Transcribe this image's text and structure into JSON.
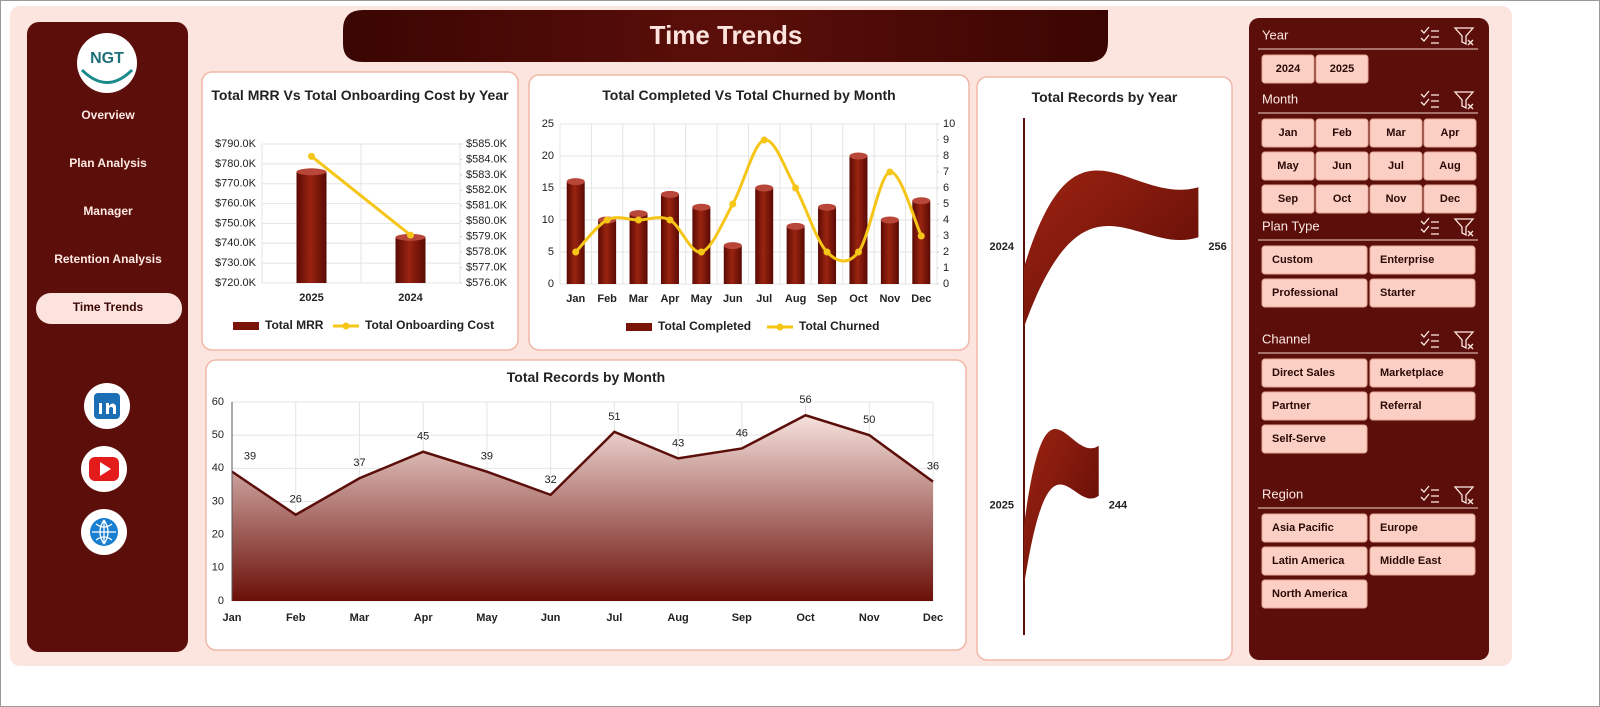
{
  "logo": "NGT",
  "navigation": [
    "Overview",
    "Plan Analysis",
    "Manager",
    "Retention Analysis",
    "Time Trends"
  ],
  "active_navigation": 4,
  "header": {
    "title": "Time Trends"
  },
  "chart_data": [
    {
      "type": "combo",
      "title": "Total MRR Vs Total Onboarding Cost by Year",
      "categories": [
        "2025",
        "2024"
      ],
      "series": [
        {
          "name": "Total MRR",
          "type": "bar",
          "color": "#7a1408",
          "values": [
            776000,
            743000
          ]
        },
        {
          "name": "Total Onboarding Cost",
          "type": "line",
          "axis": "y2",
          "color": "#f5c518",
          "values": [
            584200,
            579100
          ]
        }
      ],
      "ylim": [
        720000,
        790000
      ],
      "yticks": [
        {
          "value": 720000,
          "label": "$720.0K"
        },
        {
          "value": 730000,
          "label": "$730.0K"
        },
        {
          "value": 740000,
          "label": "$740.0K"
        },
        {
          "value": 750000,
          "label": "$750.0K"
        },
        {
          "value": 760000,
          "label": "$760.0K"
        },
        {
          "value": 770000,
          "label": "$770.0K"
        },
        {
          "value": 780000,
          "label": "$780.0K"
        },
        {
          "value": 790000,
          "label": "$790.0K"
        }
      ],
      "y2lim": [
        576000,
        585000
      ],
      "y2ticks": [
        {
          "value": 576000,
          "label": "$576.0K"
        },
        {
          "value": 577000,
          "label": "$577.0K"
        },
        {
          "value": 578000,
          "label": "$578.0K"
        },
        {
          "value": 579000,
          "label": "$579.0K"
        },
        {
          "value": 580000,
          "label": "$580.0K"
        },
        {
          "value": 581000,
          "label": "$581.0K"
        },
        {
          "value": 582000,
          "label": "$582.0K"
        },
        {
          "value": 583000,
          "label": "$583.0K"
        },
        {
          "value": 584000,
          "label": "$584.0K"
        },
        {
          "value": 585000,
          "label": "$585.0K"
        }
      ],
      "grid": true,
      "legend": "bottom"
    },
    {
      "type": "combo",
      "title": "Total Completed Vs Total Churned by Month",
      "categories": [
        "Jan",
        "Feb",
        "Mar",
        "Apr",
        "May",
        "Jun",
        "Jul",
        "Aug",
        "Sep",
        "Oct",
        "Nov",
        "Dec"
      ],
      "series": [
        {
          "name": "Total Completed",
          "type": "bar",
          "color": "#7a1408",
          "values": [
            16,
            10,
            11,
            14,
            12,
            6,
            15,
            9,
            12,
            20,
            10,
            13
          ]
        },
        {
          "name": "Total Churned",
          "type": "line",
          "axis": "y2",
          "smooth": true,
          "color": "#f5c518",
          "values": [
            2,
            4,
            4,
            4,
            2,
            5,
            9,
            6,
            2,
            2,
            7,
            3
          ]
        }
      ],
      "ylim": [
        0,
        25
      ],
      "yticks": [
        0,
        5,
        10,
        15,
        20,
        25
      ],
      "y2lim": [
        0,
        10
      ],
      "y2ticks": [
        0,
        1,
        2,
        3,
        4,
        5,
        6,
        7,
        8,
        9,
        10
      ],
      "grid": true,
      "legend": "bottom"
    },
    {
      "type": "area",
      "title": "Total Records by Month",
      "categories": [
        "Jan",
        "Feb",
        "Mar",
        "Apr",
        "May",
        "Jun",
        "Jul",
        "Aug",
        "Sep",
        "Oct",
        "Nov",
        "Dec"
      ],
      "values": [
        39,
        26,
        37,
        45,
        39,
        32,
        51,
        43,
        46,
        56,
        50,
        36
      ],
      "color": "#5c0f0a",
      "ylim": [
        0,
        60
      ],
      "yticks": [
        0,
        10,
        20,
        30,
        40,
        50,
        60
      ],
      "grid": true,
      "data_labels": true
    },
    {
      "type": "hbar",
      "title": "Total Records by Year",
      "categories": [
        "2024",
        "2025"
      ],
      "values": [
        256,
        244
      ],
      "color": "#8b1a0c",
      "xlim": [
        235,
        258
      ],
      "data_labels": true
    }
  ],
  "slicers": [
    {
      "title": "Year",
      "items": [
        "2024",
        "2025"
      ]
    },
    {
      "title": "Month",
      "items": [
        "Jan",
        "Feb",
        "Mar",
        "Apr",
        "May",
        "Jun",
        "Jul",
        "Aug",
        "Sep",
        "Oct",
        "Nov",
        "Dec"
      ]
    },
    {
      "title": "Plan Type",
      "items": [
        "Custom",
        "Enterprise",
        "Professional",
        "Starter"
      ]
    },
    {
      "title": "Channel",
      "items": [
        "Direct Sales",
        "Marketplace",
        "Partner",
        "Referral",
        "Self-Serve"
      ]
    },
    {
      "title": "Region",
      "items": [
        "Asia Pacific",
        "Europe",
        "Latin America",
        "Middle East",
        "North America"
      ]
    }
  ]
}
